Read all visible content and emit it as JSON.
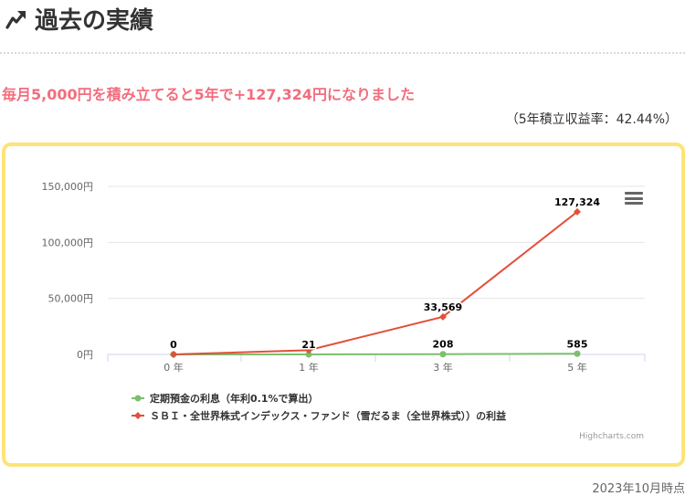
{
  "heading": {
    "icon": "trend-arrow-icon",
    "text": "過去の実績"
  },
  "headline": "毎月5,000円を積み立てると5年で+127,324円になりました",
  "rate_text": "（5年積立収益率：42.44%）",
  "chart_data": {
    "type": "line",
    "categories": [
      "0 年",
      "1 年",
      "3 年",
      "5 年"
    ],
    "x": [
      0,
      1,
      3,
      5
    ],
    "ylim": [
      0,
      150000
    ],
    "y_ticks": [
      "0円",
      "50,000円",
      "100,000円",
      "150,000円"
    ],
    "y_tick_values": [
      0,
      50000,
      100000,
      150000
    ],
    "series": [
      {
        "name": "定期預金の利息（年利0.1%で算出）",
        "color": "#7cbf6e",
        "marker": "circle",
        "values": [
          0,
          21,
          208,
          585
        ],
        "labels": [
          "0",
          "21",
          "208",
          "585"
        ]
      },
      {
        "name": "ＳＢＩ・全世界株式インデックス・ファンド（雪だるま（全世界株式））の利益",
        "color": "#e2503a",
        "marker": "diamond",
        "values": [
          0,
          3800,
          33569,
          127324
        ],
        "labels": [
          "",
          "",
          "33,569",
          "127,324"
        ]
      }
    ],
    "legend_position": "bottom-left",
    "credits": "Highcharts.com"
  },
  "timestamp": "2023年10月時点"
}
